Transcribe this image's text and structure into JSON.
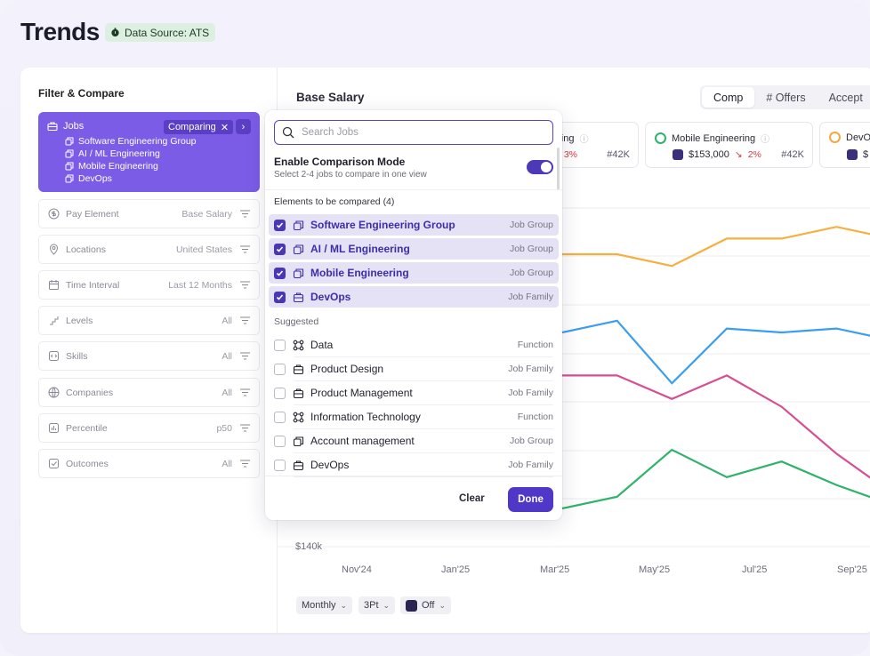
{
  "header": {
    "title": "Trends",
    "data_source": "Data Source: ATS"
  },
  "filters": {
    "title": "Filter & Compare",
    "jobs": {
      "label": "Jobs",
      "comparing": "Comparing",
      "items": [
        "Software Engineering Group",
        "AI / ML Engineering",
        "Mobile Engineering",
        "DevOps"
      ]
    },
    "rows": [
      {
        "label": "Pay Element",
        "value": "Base Salary",
        "icon": "dollar-icon"
      },
      {
        "label": "Locations",
        "value": "United States",
        "icon": "location-pin-icon"
      },
      {
        "label": "Time Interval",
        "value": "Last 12 Months",
        "icon": "calendar-icon"
      },
      {
        "label": "Levels",
        "value": "All",
        "icon": "levels-icon"
      },
      {
        "label": "Skills",
        "value": "All",
        "icon": "code-icon"
      },
      {
        "label": "Companies",
        "value": "All",
        "icon": "globe-icon"
      },
      {
        "label": "Percentile",
        "value": "p50",
        "icon": "percentile-icon"
      },
      {
        "label": "Outcomes",
        "value": "All",
        "icon": "checkbox-icon"
      }
    ]
  },
  "chart_panel": {
    "title": "Base Salary",
    "tabs": [
      "Comp",
      "# Offers",
      "Accept"
    ],
    "legend": [
      {
        "name": "ering",
        "value": "",
        "change": "3%",
        "count": "#42K",
        "color": "#4fb3f5"
      },
      {
        "name": "Mobile Engineering",
        "value": "$153,000",
        "change": "2%",
        "count": "#42K",
        "color": "#2fb36a"
      },
      {
        "name": "DevOps",
        "value": "$",
        "change": "",
        "count": "",
        "color": "#f5a742"
      }
    ],
    "y_label_bottom": "$140k",
    "x_ticks": [
      "Nov'24",
      "Jan'25",
      "Mar'25",
      "May'25",
      "Jul'25",
      "Sep'25"
    ],
    "controls": {
      "interval": "Monthly",
      "points": "3Pt",
      "overlay": "Off"
    }
  },
  "chart_data": {
    "type": "line",
    "x": [
      "Mar'25",
      "Apr'25",
      "May'25",
      "Jun'25",
      "Jul'25",
      "Aug'25",
      "Sep'25"
    ],
    "series": [
      {
        "name": "DevOps",
        "color": "#f5b042",
        "values": [
          215,
          215,
          212,
          219,
          219,
          222,
          219
        ]
      },
      {
        "name": "",
        "color": "#3a9df0",
        "values": [
          195,
          198,
          182,
          196,
          195,
          196,
          193
        ]
      },
      {
        "name": "",
        "color": "#d64f93",
        "values": [
          184,
          184,
          178,
          184,
          176,
          164,
          154
        ]
      },
      {
        "name": "Mobile Engineering",
        "color": "#2fb36a",
        "values": [
          150,
          153,
          165,
          158,
          162,
          156,
          151
        ]
      }
    ],
    "ylabel": "",
    "xlabel": ""
  },
  "dropdown": {
    "search_placeholder": "Search Jobs",
    "comparison_title": "Enable Comparison Mode",
    "comparison_sub": "Select 2-4 jobs to compare in one view",
    "selected_label": "Elements to be compared (4)",
    "selected": [
      {
        "name": "Software Engineering Group",
        "kind": "Job Group"
      },
      {
        "name": "AI / ML Engineering",
        "kind": "Job Group"
      },
      {
        "name": "Mobile Engineering",
        "kind": "Job Group"
      },
      {
        "name": "DevOps",
        "kind": "Job Family"
      }
    ],
    "suggested_label": "Suggested",
    "suggested": [
      {
        "name": "Data",
        "kind": "Function"
      },
      {
        "name": "Product Design",
        "kind": "Job Family"
      },
      {
        "name": "Product Management",
        "kind": "Job Family"
      },
      {
        "name": "Information Technology",
        "kind": "Function"
      },
      {
        "name": "Account management",
        "kind": "Job Group"
      },
      {
        "name": "DevOps",
        "kind": "Job Family"
      }
    ],
    "clear": "Clear",
    "done": "Done"
  }
}
